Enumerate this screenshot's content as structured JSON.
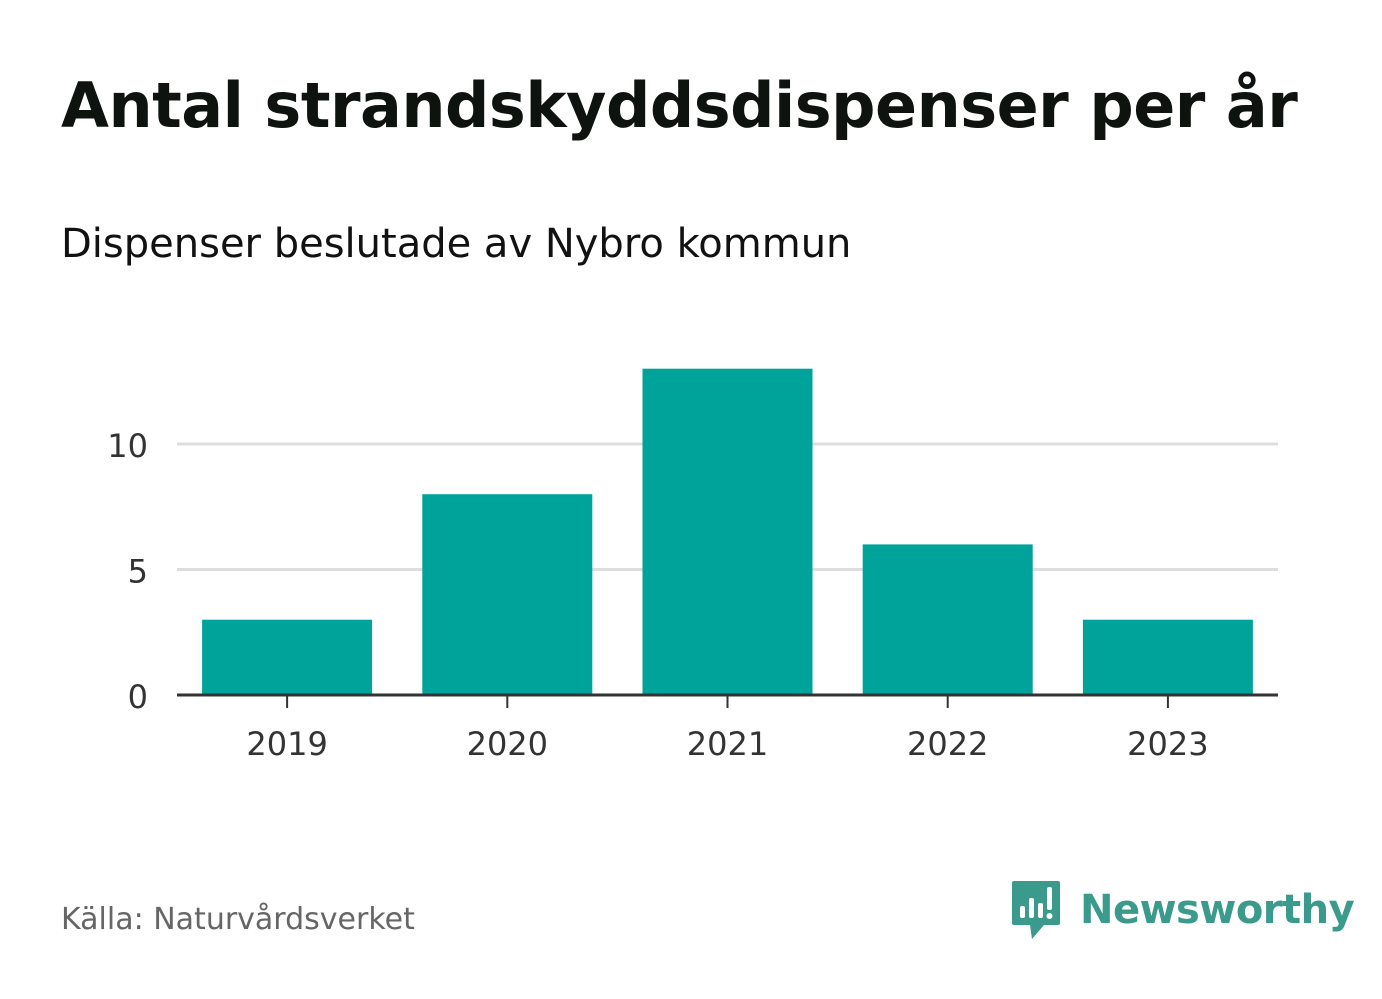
{
  "title": "Antal strandskyddsdispenser per år",
  "subtitle": "Dispenser beslutade av Nybro kommun",
  "source": "Källa: Naturvårdsverket",
  "brand": {
    "name": "Newsworthy",
    "icon": "newsworthy-logo-icon",
    "color": "#3a9a8c"
  },
  "colors": {
    "bar": "#00a39a",
    "grid": "#dddddd",
    "axis": "#333333",
    "text": "#333333"
  },
  "chart_data": {
    "type": "bar",
    "title": "Antal strandskyddsdispenser per år",
    "subtitle": "Dispenser beslutade av Nybro kommun",
    "categories": [
      "2019",
      "2020",
      "2021",
      "2022",
      "2023"
    ],
    "values": [
      3,
      8,
      13,
      6,
      3
    ],
    "xlabel": "",
    "ylabel": "",
    "ylim": [
      0,
      13
    ],
    "yticks": [
      0,
      5,
      10
    ],
    "ytick_labels": [
      "0",
      "5",
      "10"
    ],
    "grid": true,
    "legend": "none"
  }
}
